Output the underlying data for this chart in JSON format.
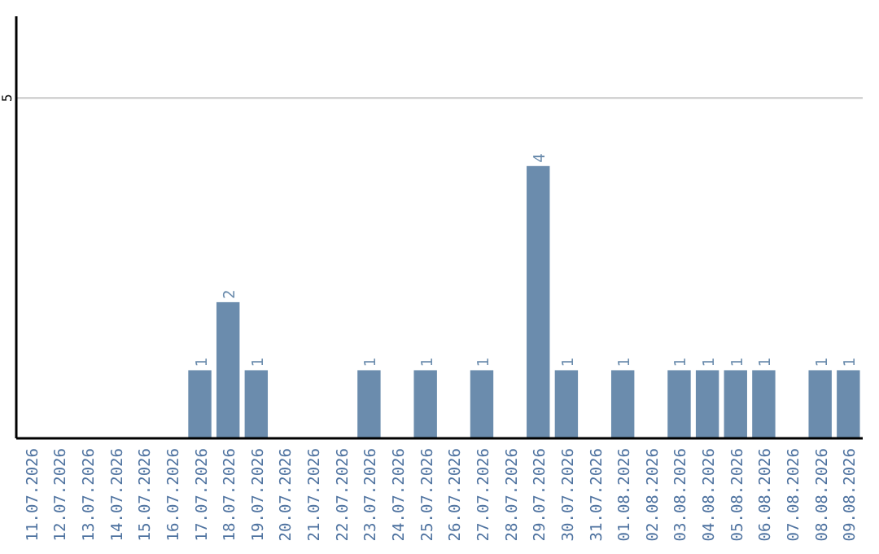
{
  "chart_data": {
    "type": "bar",
    "categories": [
      "11.07.2026",
      "12.07.2026",
      "13.07.2026",
      "14.07.2026",
      "15.07.2026",
      "16.07.2026",
      "17.07.2026",
      "18.07.2026",
      "19.07.2026",
      "20.07.2026",
      "21.07.2026",
      "22.07.2026",
      "23.07.2026",
      "24.07.2026",
      "25.07.2026",
      "26.07.2026",
      "27.07.2026",
      "28.07.2026",
      "29.07.2026",
      "30.07.2026",
      "31.07.2026",
      "01.08.2026",
      "02.08.2026",
      "03.08.2026",
      "04.08.2026",
      "05.08.2026",
      "06.08.2026",
      "07.08.2026",
      "08.08.2026",
      "09.08.2026"
    ],
    "values": [
      0,
      0,
      0,
      0,
      0,
      0,
      1,
      2,
      1,
      0,
      0,
      0,
      1,
      0,
      1,
      0,
      1,
      0,
      4,
      1,
      0,
      1,
      0,
      1,
      1,
      1,
      1,
      0,
      1,
      1
    ],
    "value_labels": [
      null,
      null,
      null,
      null,
      null,
      null,
      "1",
      "2",
      "1",
      null,
      null,
      null,
      "1",
      null,
      "1",
      null,
      "1",
      null,
      "4",
      "1",
      null,
      "1",
      null,
      "1",
      "1",
      "1",
      "1",
      null,
      "1",
      "1"
    ],
    "color": "#6b8cad",
    "ylim": [
      0,
      6.2
    ],
    "yticks": [
      5
    ],
    "grid": "y"
  }
}
